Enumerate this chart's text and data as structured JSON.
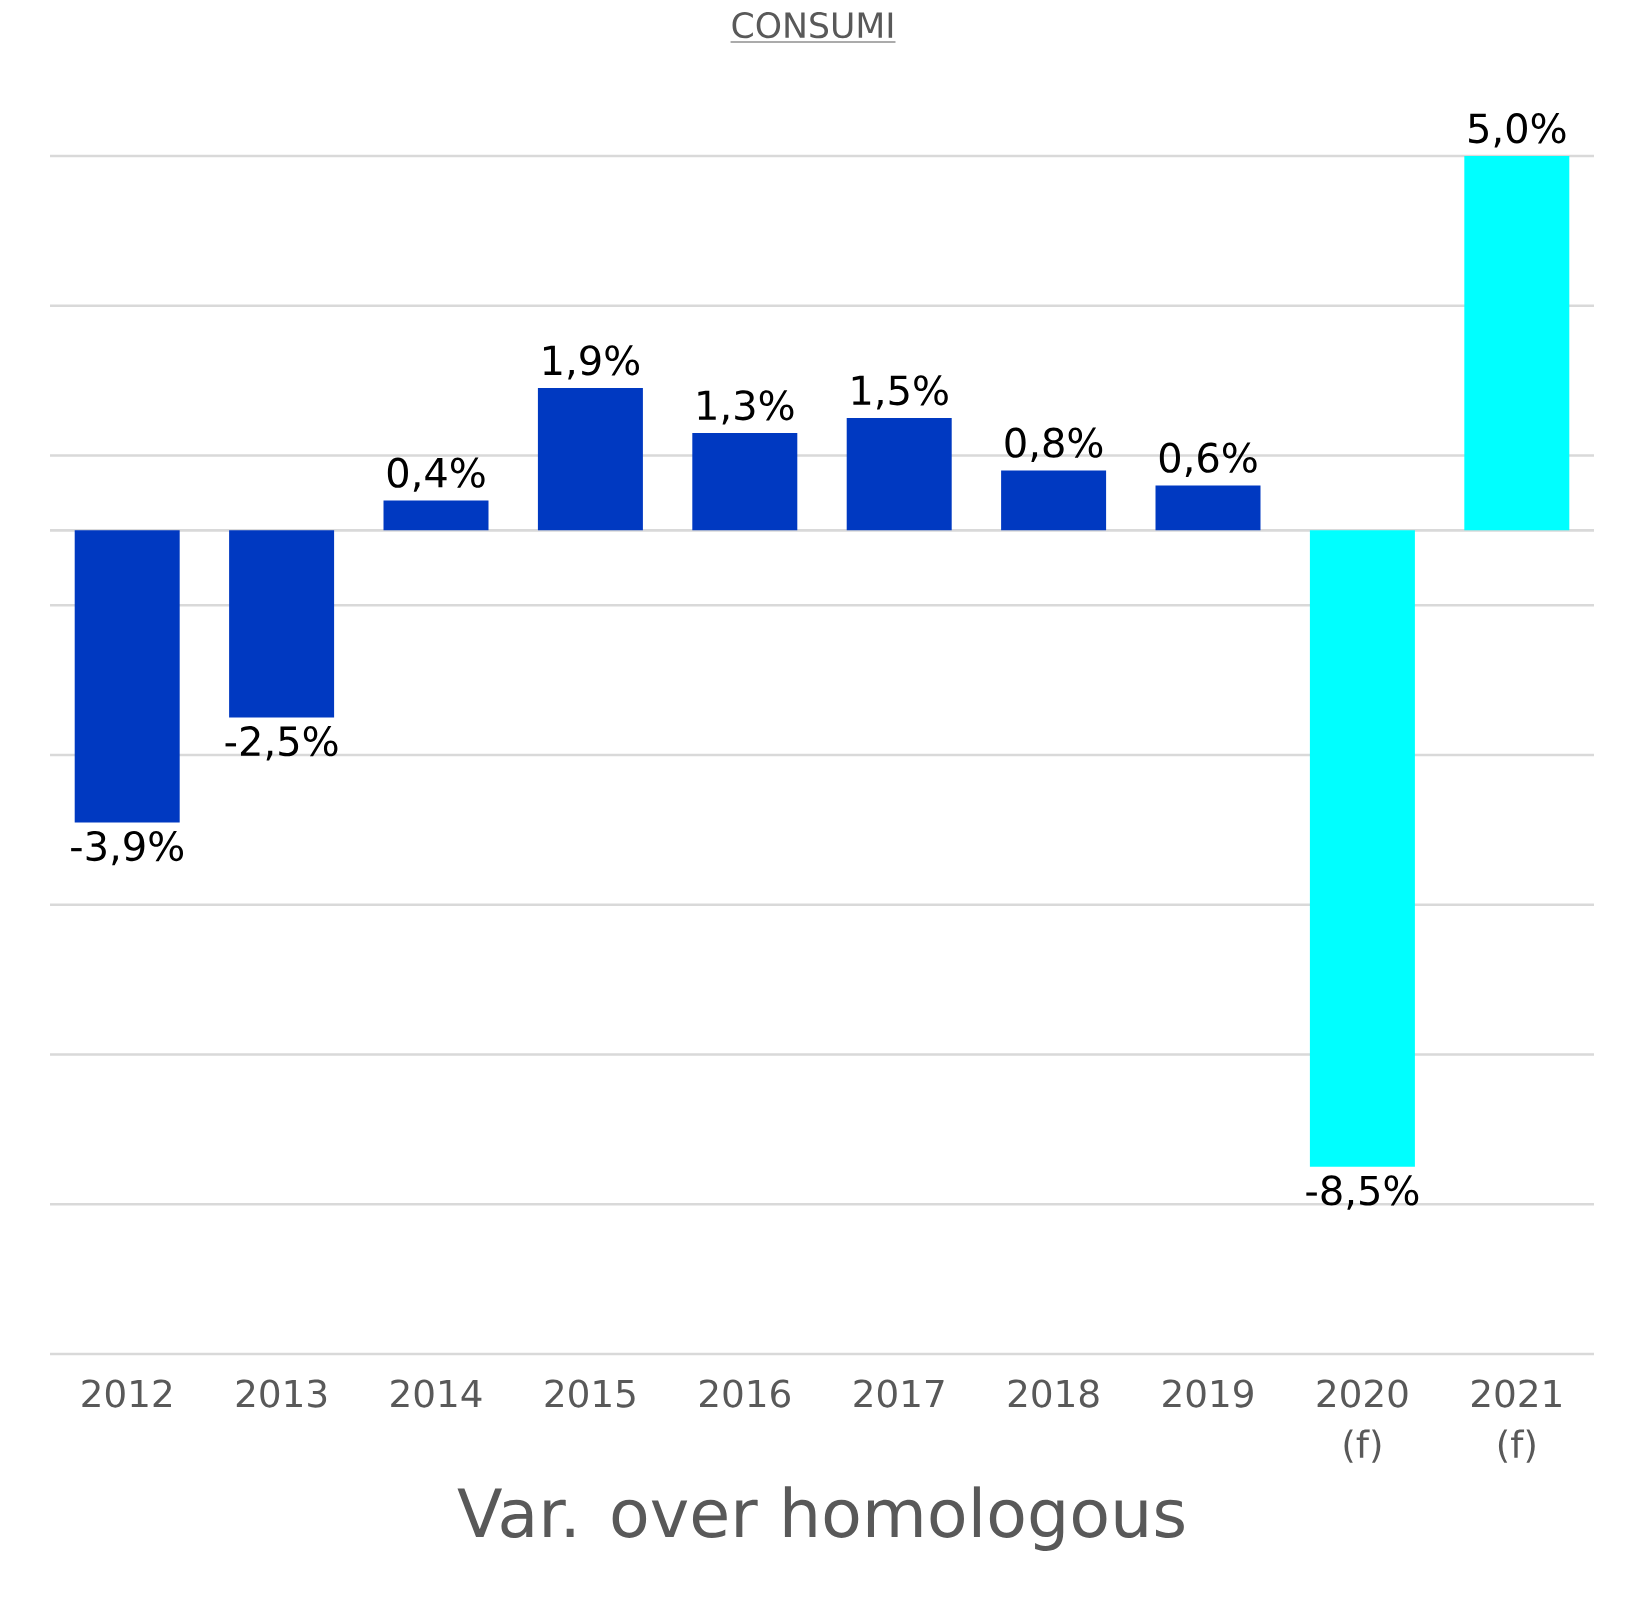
{
  "chart_data": {
    "type": "bar",
    "title": "CONSUMI",
    "xlabel": "Var. over homologous",
    "categories": [
      "2012",
      "2013",
      "2014",
      "2015",
      "2016",
      "2017",
      "2018",
      "2019",
      "2020 (f)",
      "2021 (f)"
    ],
    "values": [
      -3.9,
      -2.5,
      0.4,
      1.9,
      1.3,
      1.5,
      0.8,
      0.6,
      -8.5,
      5.0
    ],
    "colors": [
      "#0039c1",
      "#0039c1",
      "#0039c1",
      "#0039c1",
      "#0039c1",
      "#0039c1",
      "#0039c1",
      "#0039c1",
      "#00ffff",
      "#00ffff"
    ],
    "value_labels": [
      "-3,9%",
      "-2,5%",
      "0,4%",
      "1,9%",
      "1,3%",
      "1,5%",
      "0,8%",
      "0,6%",
      "-8,5%",
      "5,0%"
    ],
    "ylim": [
      -11,
      5
    ],
    "yticks": [
      {
        "value": -11,
        "label": null
      },
      {
        "value": -9,
        "label": null
      },
      {
        "value": -7,
        "label": null
      },
      {
        "value": -5,
        "label": null
      },
      {
        "value": -3,
        "label": null
      },
      {
        "value": -1,
        "label": null
      },
      {
        "value": 1,
        "label": null
      },
      {
        "value": 3,
        "label": null
      },
      {
        "value": 5,
        "label": null
      }
    ],
    "grid": "y",
    "tick_labels": "x"
  }
}
